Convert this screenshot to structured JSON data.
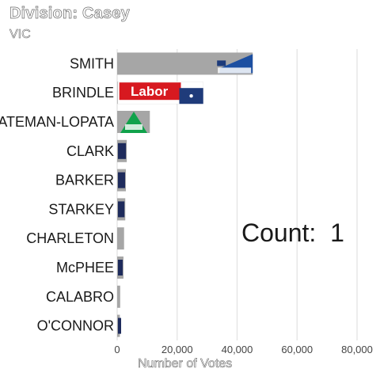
{
  "title": "Division: Casey",
  "subtitle": "VIC",
  "count_label": "Count:",
  "count_value": "1",
  "chart_data": {
    "type": "bar",
    "orientation": "horizontal",
    "categories": [
      "SMITH",
      "BRINDLE",
      "BATEMAN-LOPATA",
      "CLARK",
      "BARKER",
      "STARKEY",
      "CHARLETON",
      "McPHEE",
      "CALABRO",
      "O'CONNOR"
    ],
    "values": [
      45200,
      28700,
      10900,
      3200,
      2900,
      2700,
      2300,
      2100,
      1000,
      900
    ],
    "party_logos": [
      "liberal",
      "labor",
      "greens",
      "party-logo",
      "party-logo",
      "party-logo",
      "none",
      "party-logo",
      "none",
      "party-logo"
    ],
    "bar_color": "#a6a6a6",
    "xlabel": "Number of Votes",
    "ylabel": "",
    "xlim": [
      0,
      80000
    ],
    "xticks": [
      0,
      20000,
      40000,
      60000,
      80000
    ],
    "xtick_labels": [
      "0",
      "20,000",
      "40,000",
      "60,000",
      "80,000"
    ],
    "grid": true
  }
}
